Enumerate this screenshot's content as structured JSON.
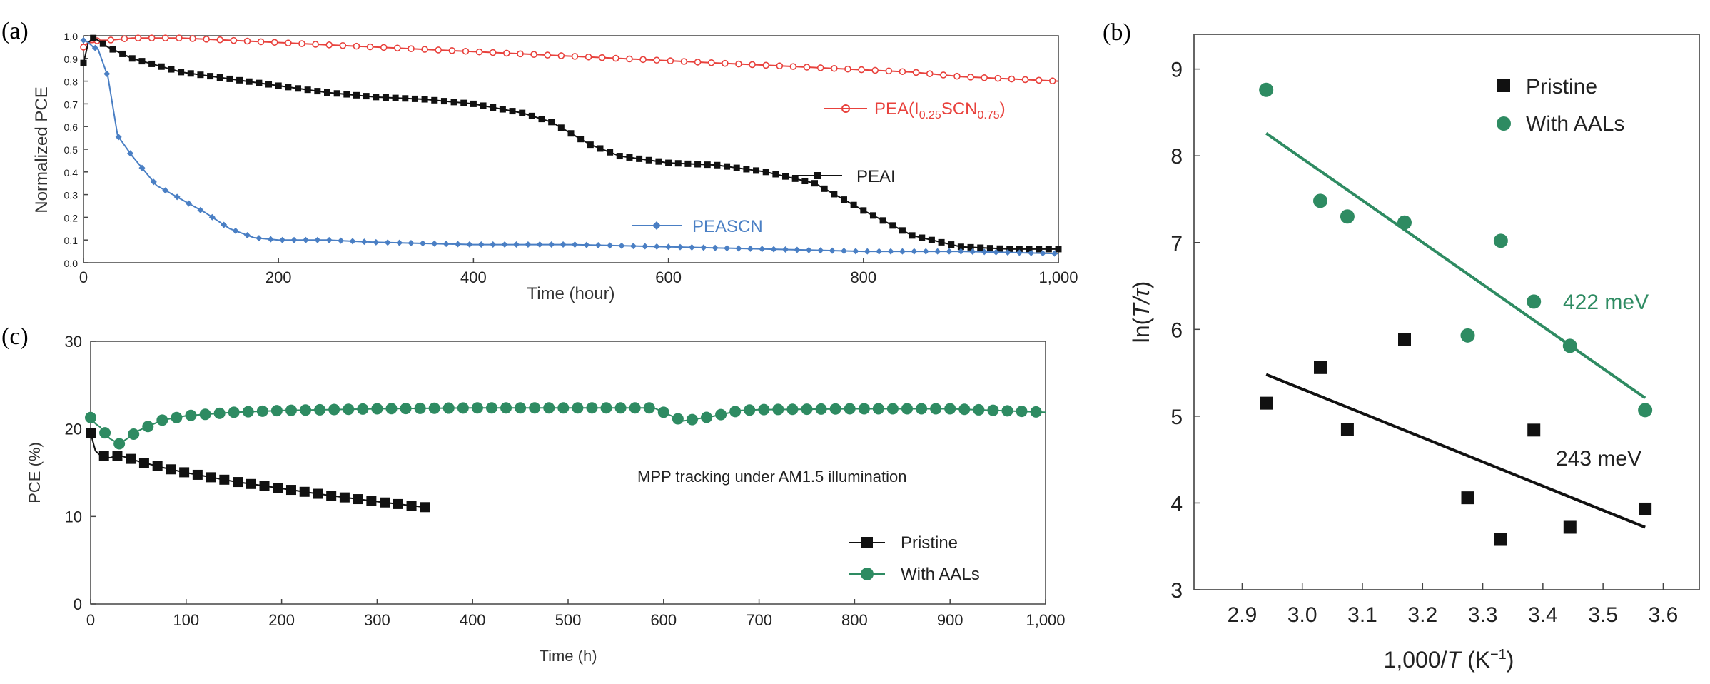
{
  "chart_data": [
    {
      "panel": "(a)",
      "type": "line",
      "xlabel": "Time (hour)",
      "ylabel": "Normalized PCE",
      "xlim": [
        0,
        1000
      ],
      "ylim": [
        0,
        1.0
      ],
      "xticks": [
        "0",
        "200",
        "400",
        "600",
        "800",
        "1,000"
      ],
      "yticks": [
        "0.0",
        "0.1",
        "0.2",
        "0.3",
        "0.4",
        "0.5",
        "0.6",
        "0.7",
        "0.8",
        "0.9",
        "1.0"
      ],
      "grid": false,
      "series": [
        {
          "name": "PEA(I0.25SCN0.75)",
          "label_main": "PEA(I",
          "label_sub1": "0.25",
          "label_mid": "SCN",
          "label_sub2": "0.75",
          "label_end": ")",
          "color": "#e8413c",
          "marker": "circle",
          "x": [
            0,
            5,
            10,
            15,
            25,
            50,
            75,
            100,
            150,
            200,
            250,
            300,
            350,
            400,
            450,
            500,
            550,
            600,
            650,
            700,
            750,
            800,
            850,
            900,
            950,
            1000
          ],
          "y": [
            0.95,
            0.97,
            0.97,
            0.98,
            0.98,
            0.99,
            0.99,
            0.99,
            0.98,
            0.97,
            0.96,
            0.95,
            0.94,
            0.93,
            0.92,
            0.91,
            0.9,
            0.89,
            0.88,
            0.87,
            0.86,
            0.85,
            0.84,
            0.82,
            0.81,
            0.8
          ]
        },
        {
          "name": "PEAI",
          "label_main": "PEAI",
          "color": "#111111",
          "marker": "square",
          "x": [
            0,
            5,
            10,
            15,
            25,
            50,
            75,
            100,
            150,
            200,
            250,
            300,
            350,
            400,
            450,
            480,
            500,
            520,
            550,
            600,
            650,
            700,
            750,
            800,
            850,
            900,
            950,
            1000
          ],
          "y": [
            0.88,
            0.97,
            0.99,
            0.98,
            0.95,
            0.9,
            0.87,
            0.84,
            0.81,
            0.78,
            0.75,
            0.73,
            0.72,
            0.7,
            0.66,
            0.62,
            0.57,
            0.52,
            0.47,
            0.44,
            0.43,
            0.4,
            0.35,
            0.23,
            0.12,
            0.07,
            0.06,
            0.06
          ]
        },
        {
          "name": "PEASCN",
          "label_main": "PEASCN",
          "color": "#4a7fc4",
          "marker": "diamond",
          "x": [
            0,
            5,
            10,
            15,
            25,
            35,
            50,
            75,
            100,
            125,
            150,
            175,
            200,
            250,
            300,
            400,
            500,
            600,
            700,
            800,
            900,
            1000
          ],
          "y": [
            0.98,
            0.97,
            0.95,
            0.94,
            0.82,
            0.56,
            0.47,
            0.34,
            0.28,
            0.22,
            0.15,
            0.11,
            0.1,
            0.1,
            0.09,
            0.08,
            0.08,
            0.07,
            0.06,
            0.05,
            0.05,
            0.04
          ]
        }
      ]
    },
    {
      "panel": "(b)",
      "type": "scatter",
      "xlabel_pre": "1,000/",
      "xlabel_var": "T",
      "xlabel_post": " (K",
      "xlabel_sup": "−1",
      "xlabel_end": ")",
      "ylabel_pre": "ln(",
      "ylabel_var": "T/τ",
      "ylabel_end": ")",
      "xlim": [
        2.82,
        3.66
      ],
      "ylim": [
        3,
        9.4
      ],
      "xticks": [
        "2.9",
        "3.0",
        "3.1",
        "3.2",
        "3.3",
        "3.4",
        "3.5",
        "3.6"
      ],
      "yticks": [
        "3",
        "4",
        "5",
        "6",
        "7",
        "8",
        "9"
      ],
      "legend_position": "top-right",
      "series": [
        {
          "name": "Pristine",
          "color": "#111111",
          "marker": "square",
          "x": [
            2.94,
            3.03,
            3.075,
            3.17,
            3.275,
            3.33,
            3.385,
            3.445,
            3.57
          ],
          "y": [
            5.15,
            5.56,
            4.85,
            5.88,
            4.06,
            3.58,
            4.84,
            3.72,
            3.93
          ],
          "fit": {
            "x": [
              2.94,
              3.57
            ],
            "y": [
              5.48,
              3.72
            ]
          },
          "annotation": "243 meV"
        },
        {
          "name": "With AALs",
          "color": "#2e8b62",
          "marker": "circle",
          "x": [
            2.94,
            3.03,
            3.075,
            3.17,
            3.275,
            3.33,
            3.385,
            3.445,
            3.57
          ],
          "y": [
            8.76,
            7.48,
            7.3,
            7.23,
            5.93,
            7.02,
            6.32,
            5.81,
            5.07
          ],
          "fit": {
            "x": [
              2.94,
              3.57
            ],
            "y": [
              8.26,
              5.21
            ]
          },
          "annotation": "422 meV"
        }
      ]
    },
    {
      "panel": "(c)",
      "type": "line",
      "xlabel": "Time (h)",
      "ylabel": "PCE (%)",
      "xlim": [
        0,
        1000
      ],
      "ylim": [
        0,
        30
      ],
      "xticks": [
        "0",
        "100",
        "200",
        "300",
        "400",
        "500",
        "600",
        "700",
        "800",
        "900",
        "1,000"
      ],
      "yticks": [
        "0",
        "10",
        "20",
        "30"
      ],
      "annotation": "MPP tracking under AM1.5 illumination",
      "legend_position": "bottom-right",
      "series": [
        {
          "name": "Pristine",
          "color": "#111111",
          "marker": "square",
          "x": [
            0,
            5,
            10,
            20,
            30,
            50,
            75,
            100,
            150,
            200,
            250,
            300,
            355
          ],
          "y": [
            19.5,
            17.5,
            17.0,
            16.7,
            17.0,
            16.3,
            15.6,
            15.0,
            14.0,
            13.2,
            12.4,
            11.7,
            11.0
          ]
        },
        {
          "name": "With AALs",
          "color": "#2e8b62",
          "marker": "circle",
          "x": [
            0,
            5,
            10,
            20,
            30,
            40,
            50,
            75,
            100,
            150,
            200,
            300,
            400,
            500,
            590,
            600,
            620,
            650,
            680,
            700,
            800,
            900,
            1000
          ],
          "y": [
            21.3,
            20.6,
            20.2,
            18.9,
            18.3,
            19.0,
            19.8,
            21.0,
            21.5,
            21.9,
            22.1,
            22.3,
            22.4,
            22.4,
            22.4,
            21.9,
            20.9,
            21.4,
            22.1,
            22.2,
            22.3,
            22.3,
            21.9
          ]
        }
      ]
    }
  ]
}
